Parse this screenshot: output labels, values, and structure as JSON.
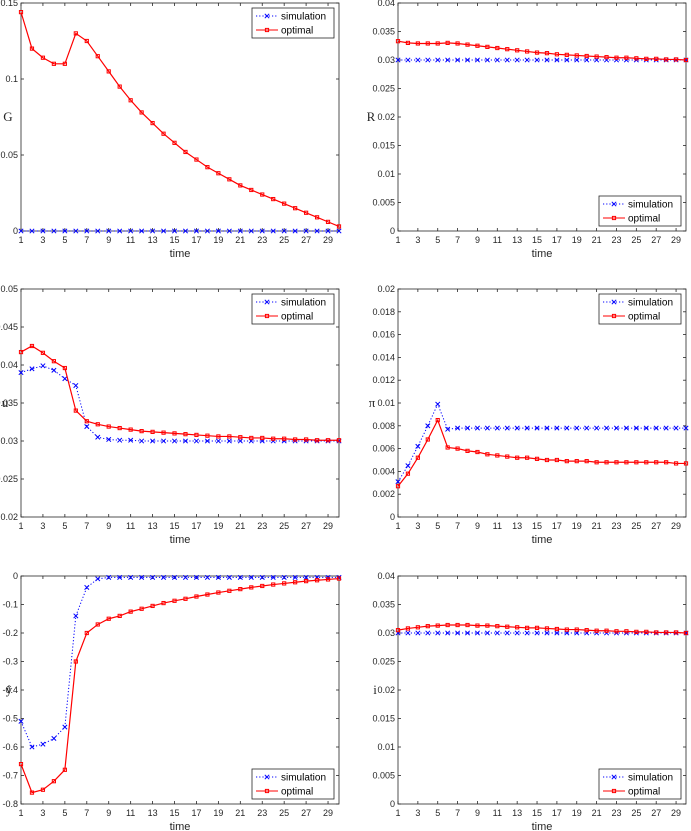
{
  "chart_data": [
    {
      "type": "line",
      "ylabel": "G",
      "xlabel": "time",
      "ylim": [
        0,
        0.15
      ],
      "yticks": [
        "0",
        "0.05",
        "0.1",
        "0.15"
      ],
      "xticks": [
        "1",
        "3",
        "5",
        "7",
        "9",
        "11",
        "13",
        "15",
        "17",
        "19",
        "21",
        "23",
        "25",
        "27",
        "29"
      ],
      "legend_loc": "top-right",
      "series": [
        {
          "name": "simulation",
          "color": "#0000ff",
          "style": "dotted-x",
          "values": [
            0,
            0,
            0,
            0,
            0,
            0,
            0,
            0,
            0,
            0,
            0,
            0,
            0,
            0,
            0,
            0,
            0,
            0,
            0,
            0,
            0,
            0,
            0,
            0,
            0,
            0,
            0,
            0,
            0,
            0
          ]
        },
        {
          "name": "optimal",
          "color": "#ff0000",
          "style": "solid-square",
          "values": [
            0.144,
            0.12,
            0.114,
            0.11,
            0.11,
            0.13,
            0.125,
            0.115,
            0.105,
            0.095,
            0.086,
            0.078,
            0.071,
            0.064,
            0.058,
            0.052,
            0.047,
            0.042,
            0.038,
            0.034,
            0.03,
            0.027,
            0.024,
            0.021,
            0.018,
            0.015,
            0.012,
            0.009,
            0.006,
            0.003
          ]
        }
      ]
    },
    {
      "type": "line",
      "ylabel": "R",
      "xlabel": "time",
      "ylim": [
        0,
        0.04
      ],
      "yticks": [
        "0",
        "0.005",
        "0.01",
        "0.015",
        "0.02",
        "0.025",
        "0.03",
        "0.035",
        "0.04"
      ],
      "xticks": [
        "1",
        "3",
        "5",
        "7",
        "9",
        "11",
        "13",
        "15",
        "17",
        "19",
        "21",
        "23",
        "25",
        "27",
        "29"
      ],
      "legend_loc": "bottom-right",
      "series": [
        {
          "name": "simulation",
          "color": "#0000ff",
          "style": "dotted-x",
          "values": [
            0.03,
            0.03,
            0.03,
            0.03,
            0.03,
            0.03,
            0.03,
            0.03,
            0.03,
            0.03,
            0.03,
            0.03,
            0.03,
            0.03,
            0.03,
            0.03,
            0.03,
            0.03,
            0.03,
            0.03,
            0.03,
            0.03,
            0.03,
            0.03,
            0.03,
            0.03,
            0.03,
            0.03,
            0.03,
            0.03
          ]
        },
        {
          "name": "optimal",
          "color": "#ff0000",
          "style": "solid-square",
          "values": [
            0.0333,
            0.033,
            0.0329,
            0.0329,
            0.0329,
            0.033,
            0.0329,
            0.0327,
            0.0325,
            0.0323,
            0.0321,
            0.0319,
            0.0317,
            0.0315,
            0.0313,
            0.0312,
            0.031,
            0.0309,
            0.0308,
            0.0307,
            0.0306,
            0.0305,
            0.0304,
            0.0304,
            0.0303,
            0.0302,
            0.0302,
            0.0301,
            0.0301,
            0.03
          ]
        }
      ]
    },
    {
      "type": "line",
      "ylabel": "u",
      "xlabel": "time",
      "ylim": [
        0.02,
        0.05
      ],
      "yticks": [
        "0.02",
        "0.025",
        "0.03",
        "0.035",
        "0.04",
        "0.045",
        "0.05"
      ],
      "xticks": [
        "1",
        "3",
        "5",
        "7",
        "9",
        "11",
        "13",
        "15",
        "17",
        "19",
        "21",
        "23",
        "25",
        "27",
        "29"
      ],
      "legend_loc": "top-right",
      "series": [
        {
          "name": "simulation",
          "color": "#0000ff",
          "style": "dotted-x",
          "values": [
            0.039,
            0.0395,
            0.0399,
            0.0393,
            0.0382,
            0.0373,
            0.0319,
            0.0305,
            0.0302,
            0.0301,
            0.0301,
            0.03,
            0.03,
            0.03,
            0.03,
            0.03,
            0.03,
            0.03,
            0.03,
            0.03,
            0.03,
            0.03,
            0.03,
            0.03,
            0.03,
            0.03,
            0.03,
            0.03,
            0.03,
            0.03
          ]
        },
        {
          "name": "optimal",
          "color": "#ff0000",
          "style": "solid-square",
          "values": [
            0.0417,
            0.0425,
            0.0416,
            0.0405,
            0.0396,
            0.034,
            0.0326,
            0.0322,
            0.0319,
            0.0317,
            0.0315,
            0.0313,
            0.0312,
            0.0311,
            0.031,
            0.0309,
            0.0308,
            0.0307,
            0.0306,
            0.0306,
            0.0305,
            0.0304,
            0.0304,
            0.0303,
            0.0303,
            0.0302,
            0.0302,
            0.0301,
            0.0301,
            0.0301
          ]
        }
      ]
    },
    {
      "type": "line",
      "ylabel": "π",
      "xlabel": "time",
      "ylim": [
        0,
        0.02
      ],
      "yticks": [
        "0",
        "0.002",
        "0.004",
        "0.006",
        "0.008",
        "0.01",
        "0.012",
        "0.014",
        "0.016",
        "0.018",
        "0.02"
      ],
      "xticks": [
        "1",
        "3",
        "5",
        "7",
        "9",
        "11",
        "13",
        "15",
        "17",
        "19",
        "21",
        "23",
        "25",
        "27",
        "29"
      ],
      "legend_loc": "top-right",
      "series": [
        {
          "name": "simulation",
          "color": "#0000ff",
          "style": "dotted-x",
          "values": [
            0.0031,
            0.0045,
            0.0062,
            0.008,
            0.0099,
            0.0077,
            0.0078,
            0.0078,
            0.0078,
            0.0078,
            0.0078,
            0.0078,
            0.0078,
            0.0078,
            0.0078,
            0.0078,
            0.0078,
            0.0078,
            0.0078,
            0.0078,
            0.0078,
            0.0078,
            0.0078,
            0.0078,
            0.0078,
            0.0078,
            0.0078,
            0.0078,
            0.0078,
            0.0078
          ]
        },
        {
          "name": "optimal",
          "color": "#ff0000",
          "style": "solid-square",
          "values": [
            0.0027,
            0.0038,
            0.0052,
            0.0068,
            0.0085,
            0.0061,
            0.006,
            0.0058,
            0.0057,
            0.0055,
            0.0054,
            0.0053,
            0.0052,
            0.0052,
            0.0051,
            0.005,
            0.005,
            0.0049,
            0.0049,
            0.0049,
            0.0048,
            0.0048,
            0.0048,
            0.0048,
            0.0048,
            0.0048,
            0.0048,
            0.0048,
            0.0047,
            0.0047
          ]
        }
      ]
    },
    {
      "type": "line",
      "ylabel": "ŷ",
      "xlabel": "time",
      "ylim": [
        -0.8,
        0
      ],
      "yticks": [
        "-0.8",
        "-0.7",
        "-0.6",
        "-0.5",
        "-0.4",
        "-0.3",
        "-0.2",
        "-0.1",
        "0"
      ],
      "xticks": [
        "1",
        "3",
        "5",
        "7",
        "9",
        "11",
        "13",
        "15",
        "17",
        "19",
        "21",
        "23",
        "25",
        "27",
        "29"
      ],
      "legend_loc": "bottom-right",
      "series": [
        {
          "name": "simulation",
          "color": "#0000ff",
          "style": "dotted-x",
          "values": [
            -0.51,
            -0.6,
            -0.59,
            -0.57,
            -0.53,
            -0.14,
            -0.04,
            -0.01,
            -0.005,
            -0.005,
            -0.005,
            -0.005,
            -0.005,
            -0.005,
            -0.005,
            -0.005,
            -0.005,
            -0.005,
            -0.005,
            -0.005,
            -0.005,
            -0.005,
            -0.005,
            -0.005,
            -0.005,
            -0.005,
            -0.005,
            -0.005,
            -0.005,
            -0.005
          ]
        },
        {
          "name": "optimal",
          "color": "#ff0000",
          "style": "solid-square",
          "values": [
            -0.66,
            -0.76,
            -0.75,
            -0.72,
            -0.68,
            -0.3,
            -0.2,
            -0.17,
            -0.15,
            -0.14,
            -0.125,
            -0.115,
            -0.105,
            -0.095,
            -0.087,
            -0.08,
            -0.072,
            -0.065,
            -0.058,
            -0.052,
            -0.046,
            -0.04,
            -0.035,
            -0.03,
            -0.026,
            -0.022,
            -0.018,
            -0.015,
            -0.012,
            -0.009
          ]
        }
      ]
    },
    {
      "type": "line",
      "ylabel": "i",
      "xlabel": "time",
      "ylim": [
        0,
        0.04
      ],
      "yticks": [
        "0",
        "0.005",
        "0.01",
        "0.015",
        "0.02",
        "0.025",
        "0.03",
        "0.035",
        "0.04"
      ],
      "xticks": [
        "1",
        "3",
        "5",
        "7",
        "9",
        "11",
        "13",
        "15",
        "17",
        "19",
        "21",
        "23",
        "25",
        "27",
        "29"
      ],
      "legend_loc": "bottom-right",
      "series": [
        {
          "name": "simulation",
          "color": "#0000ff",
          "style": "dotted-x",
          "values": [
            0.03,
            0.03,
            0.03,
            0.03,
            0.03,
            0.03,
            0.03,
            0.03,
            0.03,
            0.03,
            0.03,
            0.03,
            0.03,
            0.03,
            0.03,
            0.03,
            0.03,
            0.03,
            0.03,
            0.03,
            0.03,
            0.03,
            0.03,
            0.03,
            0.03,
            0.03,
            0.03,
            0.03,
            0.03,
            0.03
          ]
        },
        {
          "name": "optimal",
          "color": "#ff0000",
          "style": "solid-square",
          "values": [
            0.0305,
            0.0308,
            0.031,
            0.0312,
            0.0313,
            0.0314,
            0.0314,
            0.0314,
            0.0313,
            0.0313,
            0.0312,
            0.0311,
            0.031,
            0.0309,
            0.0309,
            0.0308,
            0.0307,
            0.0306,
            0.0306,
            0.0305,
            0.0304,
            0.0304,
            0.0303,
            0.0303,
            0.0302,
            0.0302,
            0.0301,
            0.0301,
            0.0301,
            0.03
          ]
        }
      ]
    }
  ]
}
